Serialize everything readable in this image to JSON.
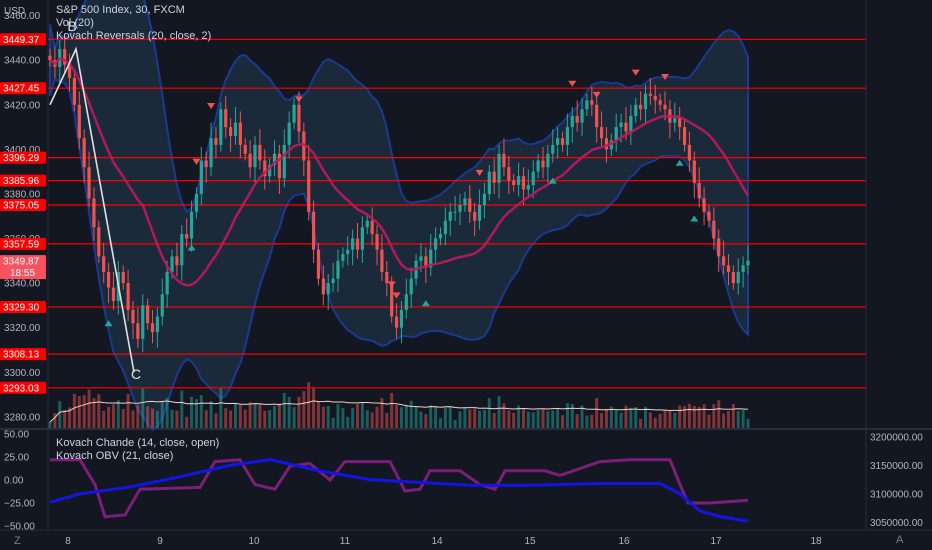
{
  "header": {
    "currency": "USD",
    "title": "S&P 500 Index, 30, FXCM",
    "indicators": [
      "Vol (20)",
      "Kovach Reversals (20, close, 2)"
    ]
  },
  "lower_pane": {
    "indicators": [
      "Kovach Chande (14, close, open)",
      "Kovach OBV (21, close)"
    ]
  },
  "price_axis": {
    "ticks": [
      "3460.00",
      "3440.00",
      "3420.00",
      "3400.00",
      "3380.00",
      "3360.00",
      "3340.00",
      "3320.00",
      "3300.00",
      "3280.00"
    ]
  },
  "levels": [
    {
      "label": "3449.37",
      "value": 3449.37
    },
    {
      "label": "3427.45",
      "value": 3427.45
    },
    {
      "label": "3396.29",
      "value": 3396.29
    },
    {
      "label": "3385.96",
      "value": 3385.96
    },
    {
      "label": "3375.05",
      "value": 3375.05
    },
    {
      "label": "3357.59",
      "value": 3357.59
    },
    {
      "label": "3329.30",
      "value": 3329.3
    },
    {
      "label": "3308.13",
      "value": 3308.13
    },
    {
      "label": "3293.03",
      "value": 3293.03
    }
  ],
  "last_price": {
    "label": "3349.87",
    "time": "18:55",
    "value": 3349.87
  },
  "annotations": [
    "B",
    "C"
  ],
  "osc_axis_left": [
    "50.00",
    "25.00",
    "0.00",
    "−25.00",
    "−50.00"
  ],
  "osc_axis_right": [
    "3200000.00",
    "3150000.00",
    "3100000.00",
    "3050000.00"
  ],
  "time_axis": [
    "8",
    "9",
    "10",
    "11",
    "14",
    "15",
    "16",
    "17",
    "18"
  ],
  "buttons": {
    "z": "Z",
    "a": "A"
  },
  "colors": {
    "bg": "#131722",
    "level": "#ff0000",
    "band": "#1a3a8f",
    "ma": "#c2185b",
    "up": "#26a69a",
    "down": "#ef5350",
    "obv": "#1414e6",
    "chande": "#7b1f7b"
  },
  "chart_data": {
    "type": "candlestick",
    "series": [
      {
        "name": "S&P 500 Index, 30, FXCM",
        "close": [
          3440,
          3437,
          3445,
          3438,
          3432,
          3420,
          3405,
          3392,
          3378,
          3365,
          3352,
          3345,
          3338,
          3332,
          3345,
          3340,
          3328,
          3322,
          3315,
          3330,
          3322,
          3318,
          3325,
          3335,
          3345,
          3352,
          3348,
          3362,
          3360,
          3372,
          3380,
          3395,
          3392,
          3405,
          3402,
          3418,
          3410,
          3406,
          3412,
          3402,
          3398,
          3392,
          3402,
          3395,
          3388,
          3393,
          3398,
          3387,
          3402,
          3412,
          3420,
          3408,
          3395,
          3372,
          3355,
          3342,
          3335,
          3340,
          3342,
          3350,
          3353,
          3355,
          3360,
          3355,
          3365,
          3368,
          3362,
          3355,
          3345,
          3340,
          3325,
          3320,
          3328,
          3335,
          3342,
          3350,
          3352,
          3347,
          3355,
          3360,
          3362,
          3368,
          3372,
          3372,
          3375,
          3378,
          3372,
          3368,
          3375,
          3380,
          3390,
          3385,
          3398,
          3392,
          3386,
          3384,
          3388,
          3382,
          3384,
          3390,
          3395,
          3392,
          3398,
          3402,
          3405,
          3402,
          3410,
          3415,
          3412,
          3418,
          3422,
          3420,
          3410,
          3405,
          3400,
          3404,
          3410,
          3412,
          3408,
          3415,
          3420,
          3418,
          3425,
          3424,
          3422,
          3420,
          3418,
          3412,
          3414,
          3410,
          3402,
          3395,
          3385,
          3378,
          3372,
          3368,
          3360,
          3352,
          3348,
          3345,
          3340,
          3345,
          3348,
          3350
        ]
      }
    ],
    "volume_ma_period": 20,
    "price_ylim": [
      3275,
      3467
    ]
  }
}
